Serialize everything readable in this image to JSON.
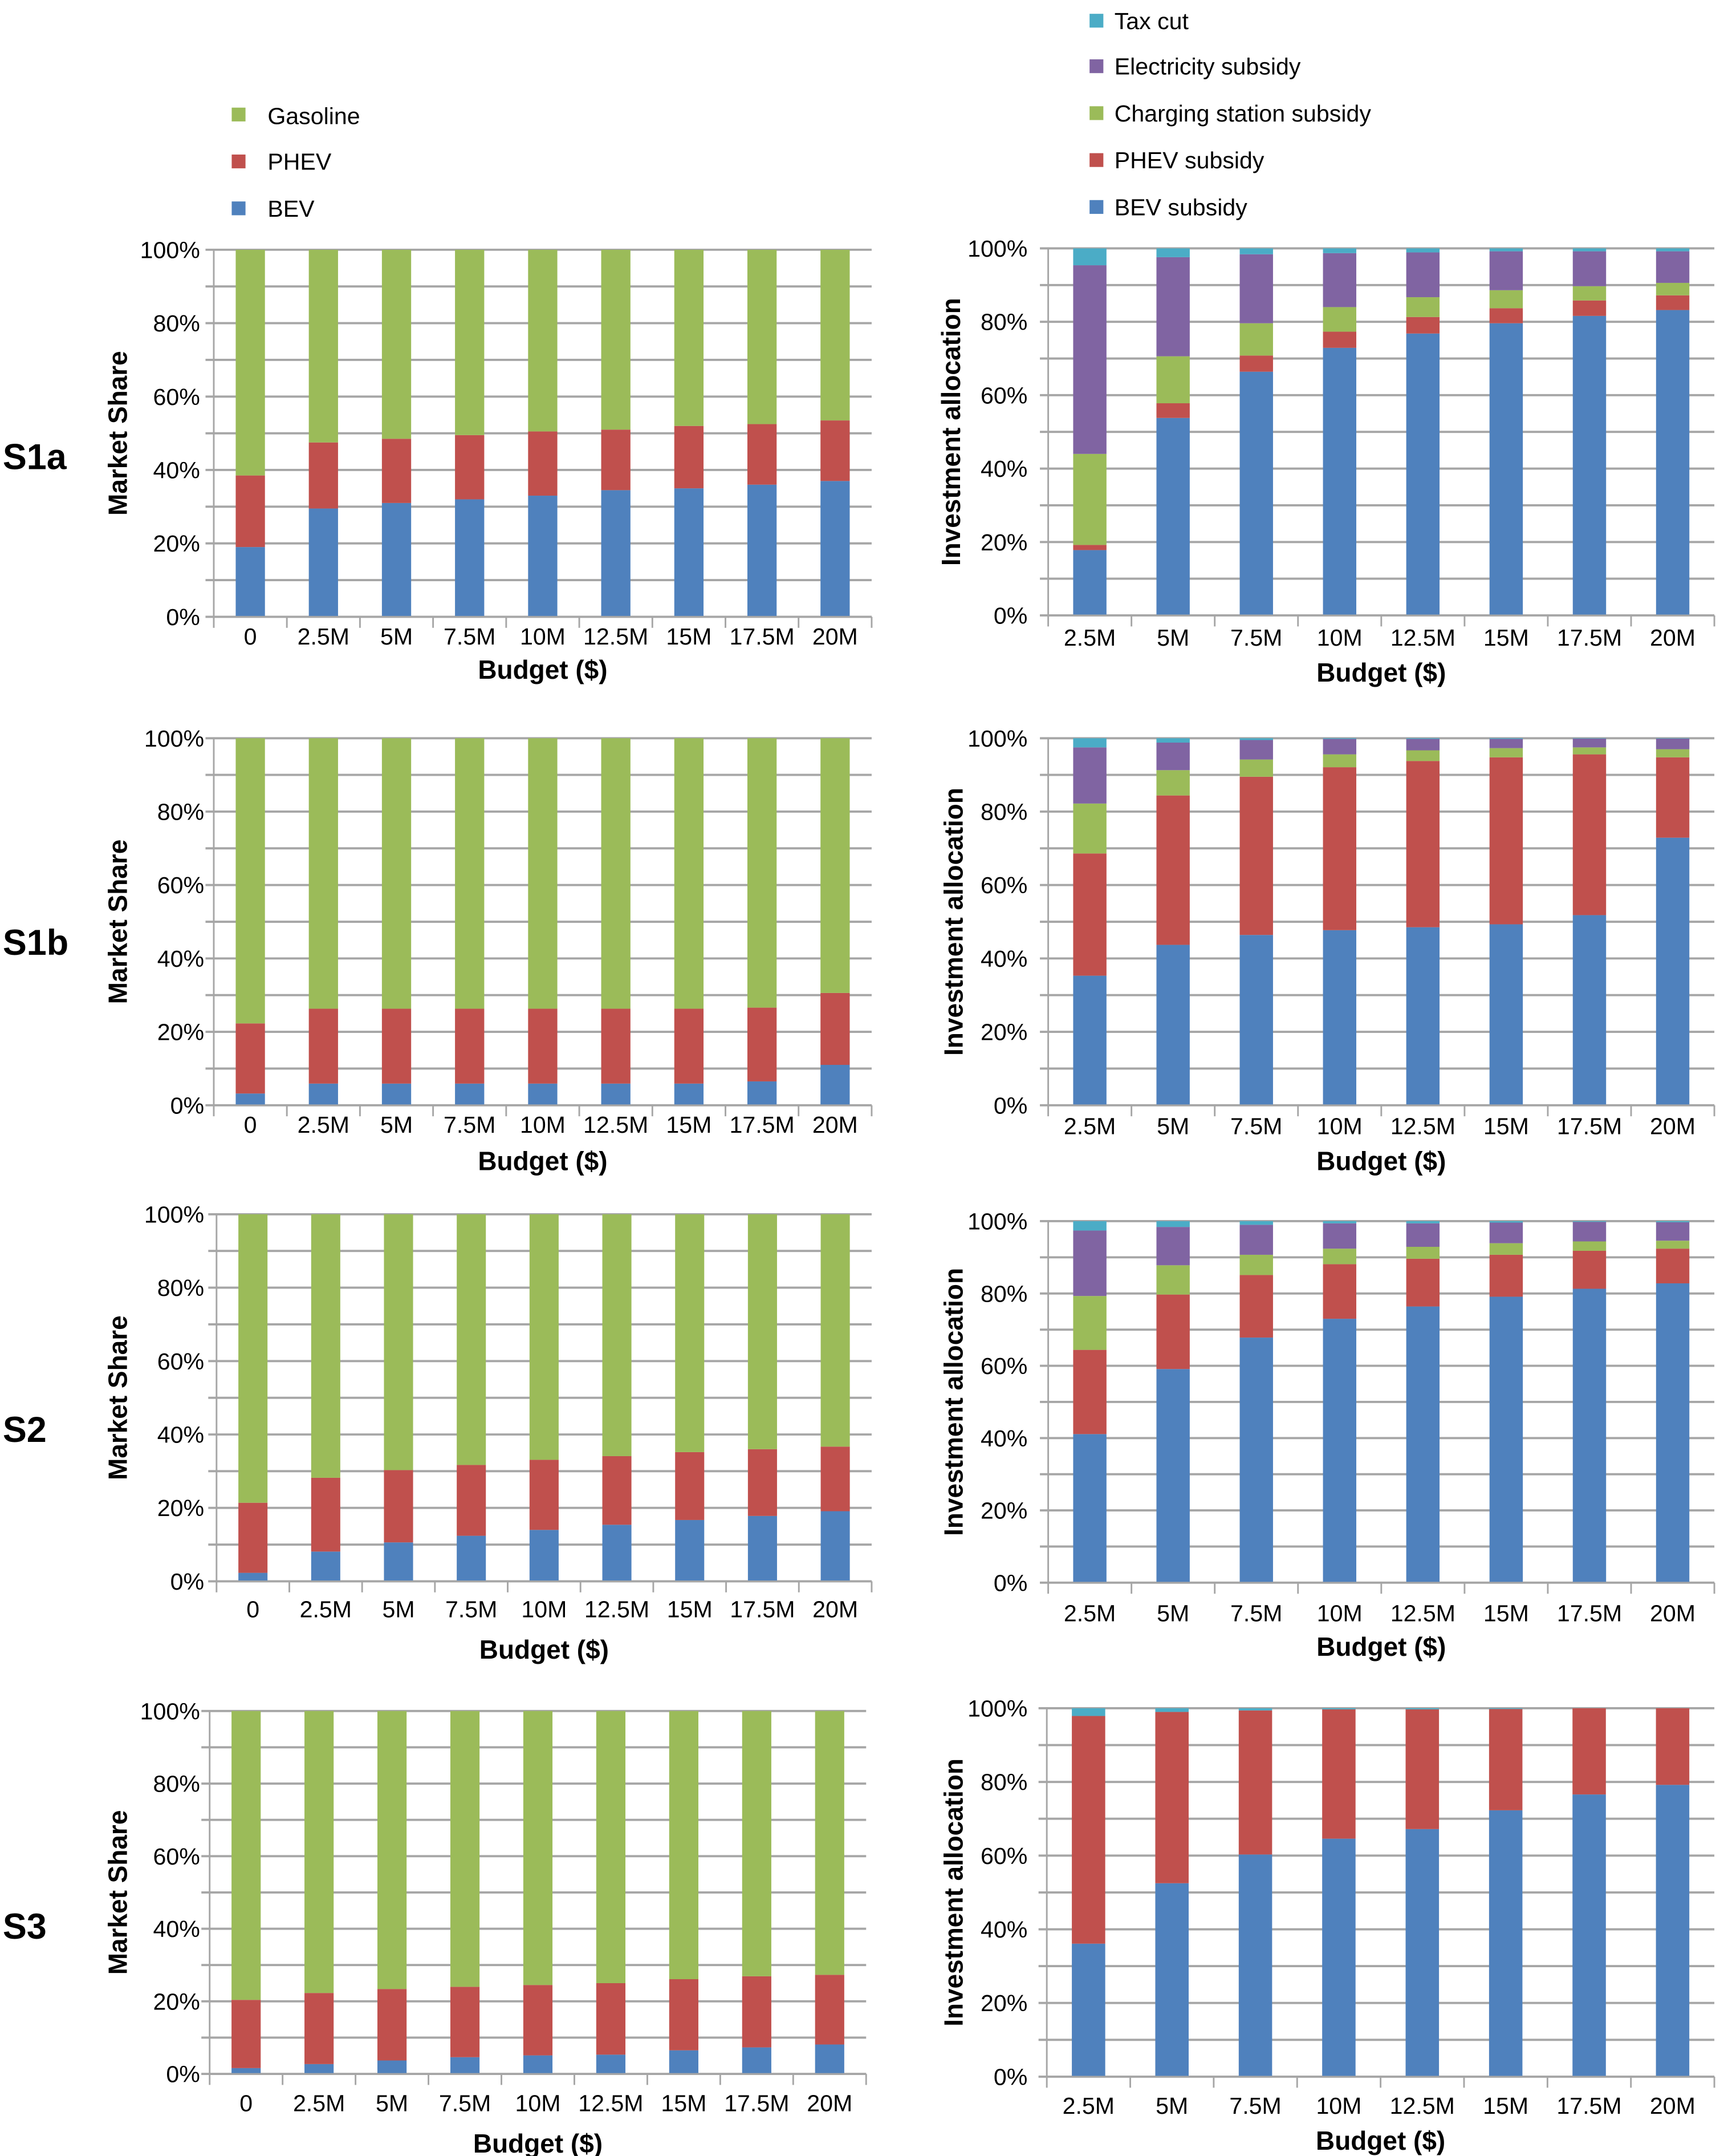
{
  "colors": {
    "gasoline": "#9BBB59",
    "phev": "#C0504D",
    "bev": "#4F81BD",
    "electricity": "#8064A2",
    "tax": "#4BACC6",
    "charging": "#9BBB59"
  },
  "legends": {
    "market": [
      {
        "label": "Gasoline",
        "color_key": "gasoline"
      },
      {
        "label": "PHEV",
        "color_key": "phev"
      },
      {
        "label": "BEV",
        "color_key": "bev"
      }
    ],
    "investment": [
      {
        "label": "Tax cut",
        "color_key": "tax"
      },
      {
        "label": "Electricity subsidy",
        "color_key": "electricity"
      },
      {
        "label": "Charging station subsidy",
        "color_key": "charging"
      },
      {
        "label": "PHEV subsidy",
        "color_key": "phev"
      },
      {
        "label": "BEV subsidy",
        "color_key": "bev"
      }
    ]
  },
  "row_labels": [
    "S1a",
    "S1b",
    "S2",
    "S3"
  ],
  "chart_data": [
    {
      "id": "S1a-market",
      "type": "bar",
      "stacked": true,
      "title": "",
      "xlabel": "Budget ($)",
      "ylabel": "Market Share",
      "ylim": [
        0,
        100
      ],
      "yticks": [
        "0%",
        "20%",
        "40%",
        "60%",
        "80%",
        "100%"
      ],
      "grid": true,
      "legend": "top-left",
      "categories": [
        "0",
        "2.5M",
        "5M",
        "7.5M",
        "10M",
        "12.5M",
        "15M",
        "17.5M",
        "20M"
      ],
      "series": [
        {
          "name": "BEV",
          "color_key": "bev",
          "values": [
            19,
            29.5,
            31,
            32,
            33,
            34.5,
            35,
            36,
            37
          ]
        },
        {
          "name": "PHEV",
          "color_key": "phev",
          "values": [
            19.5,
            18,
            17.5,
            17.5,
            17.5,
            16.5,
            17,
            16.5,
            16.5
          ]
        },
        {
          "name": "Gasoline",
          "color_key": "gasoline",
          "values": [
            61.5,
            52.5,
            51.5,
            50.5,
            49.5,
            49,
            48,
            47.5,
            46.5
          ]
        }
      ]
    },
    {
      "id": "S1a-investment",
      "type": "bar",
      "stacked": true,
      "title": "",
      "xlabel": "Budget ($)",
      "ylabel": "Investment allocation",
      "ylim": [
        0,
        100
      ],
      "yticks": [
        "0%",
        "20%",
        "40%",
        "60%",
        "80%",
        "100%"
      ],
      "grid": true,
      "legend": "top-left",
      "categories": [
        "2.5M",
        "5M",
        "7.5M",
        "10M",
        "12.5M",
        "15M",
        "17.5M",
        "20M"
      ],
      "series": [
        {
          "name": "BEV subsidy",
          "color_key": "bev",
          "values": [
            17.8,
            53.8,
            66.4,
            72.9,
            76.8,
            79.6,
            81.6,
            83.2
          ]
        },
        {
          "name": "PHEV subsidy",
          "color_key": "phev",
          "values": [
            1.4,
            4.0,
            4.4,
            4.4,
            4.5,
            4.1,
            4.2,
            4.0
          ]
        },
        {
          "name": "Charging station subsidy",
          "color_key": "charging",
          "values": [
            24.8,
            12.8,
            8.8,
            6.7,
            5.4,
            4.9,
            3.9,
            3.4
          ]
        },
        {
          "name": "Electricity subsidy",
          "color_key": "electricity",
          "values": [
            51.4,
            27.0,
            18.8,
            14.7,
            12.2,
            10.6,
            9.5,
            8.6
          ]
        },
        {
          "name": "Tax cut",
          "color_key": "tax",
          "values": [
            4.6,
            2.4,
            1.6,
            1.3,
            1.1,
            0.8,
            0.8,
            0.8
          ]
        }
      ]
    },
    {
      "id": "S1b-market",
      "type": "bar",
      "stacked": true,
      "title": "",
      "xlabel": "Budget ($)",
      "ylabel": "Market Share",
      "ylim": [
        0,
        100
      ],
      "yticks": [
        "0%",
        "20%",
        "40%",
        "60%",
        "80%",
        "100%"
      ],
      "grid": true,
      "legend": "none",
      "categories": [
        "0",
        "2.5M",
        "5M",
        "7.5M",
        "10M",
        "12.5M",
        "15M",
        "17.5M",
        "20M"
      ],
      "series": [
        {
          "name": "BEV",
          "color_key": "bev",
          "values": [
            3.2,
            5.9,
            5.9,
            5.9,
            5.9,
            5.9,
            5.9,
            6.5,
            11
          ]
        },
        {
          "name": "PHEV",
          "color_key": "phev",
          "values": [
            19.1,
            20.4,
            20.4,
            20.4,
            20.4,
            20.4,
            20.4,
            20.1,
            19.6
          ]
        },
        {
          "name": "Gasoline",
          "color_key": "gasoline",
          "values": [
            77.7,
            73.7,
            73.7,
            73.7,
            73.7,
            73.7,
            73.7,
            73.4,
            69.4
          ]
        }
      ]
    },
    {
      "id": "S1b-investment",
      "type": "bar",
      "stacked": true,
      "title": "",
      "xlabel": "Budget ($)",
      "ylabel": "Investment allocation",
      "ylim": [
        0,
        100
      ],
      "yticks": [
        "0%",
        "20%",
        "40%",
        "60%",
        "80%",
        "100%"
      ],
      "grid": true,
      "legend": "none",
      "categories": [
        "2.5M",
        "5M",
        "7.5M",
        "10M",
        "12.5M",
        "15M",
        "17.5M",
        "20M"
      ],
      "series": [
        {
          "name": "BEV subsidy",
          "color_key": "bev",
          "values": [
            35.3,
            43.7,
            46.4,
            47.7,
            48.5,
            49.3,
            51.8,
            72.9
          ]
        },
        {
          "name": "PHEV subsidy",
          "color_key": "phev",
          "values": [
            33.3,
            40.7,
            43.1,
            44.4,
            45.3,
            45.5,
            43.8,
            21.9
          ]
        },
        {
          "name": "Charging station subsidy",
          "color_key": "charging",
          "values": [
            13.6,
            6.9,
            4.7,
            3.5,
            2.9,
            2.5,
            1.9,
            2.2
          ]
        },
        {
          "name": "Electricity subsidy",
          "color_key": "electricity",
          "values": [
            15.3,
            7.5,
            5.3,
            4.2,
            3.1,
            2.5,
            2.4,
            2.9
          ]
        },
        {
          "name": "Tax cut",
          "color_key": "tax",
          "values": [
            2.5,
            1.2,
            0.5,
            0.2,
            0.2,
            0.2,
            0.1,
            0.1
          ]
        }
      ]
    },
    {
      "id": "S2-market",
      "type": "bar",
      "stacked": true,
      "title": "",
      "xlabel": "Budget ($)",
      "ylabel": "Market Share",
      "ylim": [
        0,
        100
      ],
      "yticks": [
        "0%",
        "20%",
        "40%",
        "60%",
        "80%",
        "100%"
      ],
      "grid": true,
      "legend": "none",
      "categories": [
        "0",
        "2.5M",
        "5M",
        "7.5M",
        "10M",
        "12.5M",
        "15M",
        "17.5M",
        "20M"
      ],
      "series": [
        {
          "name": "BEV",
          "color_key": "bev",
          "values": [
            2.3,
            8.1,
            10.6,
            12.4,
            14,
            15.4,
            16.7,
            17.8,
            19.1
          ]
        },
        {
          "name": "PHEV",
          "color_key": "phev",
          "values": [
            19.1,
            20.1,
            19.7,
            19.3,
            19.1,
            18.7,
            18.5,
            18.2,
            17.6
          ]
        },
        {
          "name": "Gasoline",
          "color_key": "gasoline",
          "values": [
            78.6,
            71.8,
            69.7,
            68.3,
            66.9,
            65.9,
            64.8,
            64,
            63.3
          ]
        }
      ]
    },
    {
      "id": "S2-investment",
      "type": "bar",
      "stacked": true,
      "title": "",
      "xlabel": "Budget ($)",
      "ylabel": "Investment allocation",
      "ylim": [
        0,
        100
      ],
      "yticks": [
        "0%",
        "20%",
        "40%",
        "60%",
        "80%",
        "100%"
      ],
      "grid": true,
      "legend": "none",
      "categories": [
        "2.5M",
        "5M",
        "7.5M",
        "10M",
        "12.5M",
        "15M",
        "17.5M",
        "20M"
      ],
      "series": [
        {
          "name": "BEV subsidy",
          "color_key": "bev",
          "values": [
            41.1,
            59.1,
            67.8,
            73.0,
            76.4,
            79.1,
            81.3,
            82.8
          ]
        },
        {
          "name": "PHEV subsidy",
          "color_key": "phev",
          "values": [
            23.3,
            20.6,
            17.3,
            15.1,
            13.2,
            11.6,
            10.5,
            9.6
          ]
        },
        {
          "name": "Charging station subsidy",
          "color_key": "charging",
          "values": [
            14.9,
            8.1,
            5.6,
            4.3,
            3.3,
            3.2,
            2.6,
            2.2
          ]
        },
        {
          "name": "Electricity subsidy",
          "color_key": "electricity",
          "values": [
            18.1,
            10.6,
            8.3,
            7.0,
            6.5,
            5.7,
            5.4,
            5.1
          ]
        },
        {
          "name": "Tax cut",
          "color_key": "tax",
          "values": [
            2.6,
            1.6,
            1.0,
            0.6,
            0.6,
            0.4,
            0.2,
            0.3
          ]
        }
      ]
    },
    {
      "id": "S3-market",
      "type": "bar",
      "stacked": true,
      "title": "",
      "xlabel": "Budget ($)",
      "ylabel": "Market Share",
      "ylim": [
        0,
        100
      ],
      "yticks": [
        "0%",
        "20%",
        "40%",
        "60%",
        "80%",
        "100%"
      ],
      "grid": true,
      "legend": "none",
      "categories": [
        "0",
        "2.5M",
        "5M",
        "7.5M",
        "10M",
        "12.5M",
        "15M",
        "17.5M",
        "20M"
      ],
      "series": [
        {
          "name": "BEV",
          "color_key": "bev",
          "values": [
            1.6,
            2.7,
            3.7,
            4.6,
            5.1,
            5.3,
            6.5,
            7.3,
            8.1
          ]
        },
        {
          "name": "PHEV",
          "color_key": "phev",
          "values": [
            18.8,
            19.6,
            19.7,
            19.4,
            19.4,
            19.7,
            19.6,
            19.6,
            19.2
          ]
        },
        {
          "name": "Gasoline",
          "color_key": "gasoline",
          "values": [
            79.6,
            77.7,
            76.6,
            76,
            75.5,
            75,
            73.9,
            73.1,
            72.7
          ]
        }
      ]
    },
    {
      "id": "S3-investment",
      "type": "bar",
      "stacked": true,
      "title": "",
      "xlabel": "Budget ($)",
      "ylabel": "Investment allocation",
      "ylim": [
        0,
        100
      ],
      "yticks": [
        "0%",
        "20%",
        "40%",
        "60%",
        "80%",
        "100%"
      ],
      "grid": true,
      "legend": "none",
      "categories": [
        "2.5M",
        "5M",
        "7.5M",
        "10M",
        "12.5M",
        "15M",
        "17.5M",
        "20M"
      ],
      "series": [
        {
          "name": "BEV subsidy",
          "color_key": "bev",
          "values": [
            36.1,
            52.5,
            60.3,
            64.6,
            67.2,
            72.3,
            76.6,
            79.2
          ]
        },
        {
          "name": "PHEV subsidy",
          "color_key": "phev",
          "values": [
            61.8,
            46.5,
            39.1,
            35.1,
            32.5,
            27.5,
            23.4,
            20.8
          ]
        },
        {
          "name": "Charging station subsidy",
          "color_key": "charging",
          "values": [
            0,
            0,
            0,
            0,
            0,
            0,
            0,
            0
          ]
        },
        {
          "name": "Electricity subsidy",
          "color_key": "electricity",
          "values": [
            0,
            0,
            0,
            0,
            0,
            0,
            0,
            0
          ]
        },
        {
          "name": "Tax cut",
          "color_key": "tax",
          "values": [
            2.1,
            1.0,
            0.6,
            0.3,
            0.3,
            0.2,
            0,
            0
          ]
        }
      ]
    }
  ]
}
